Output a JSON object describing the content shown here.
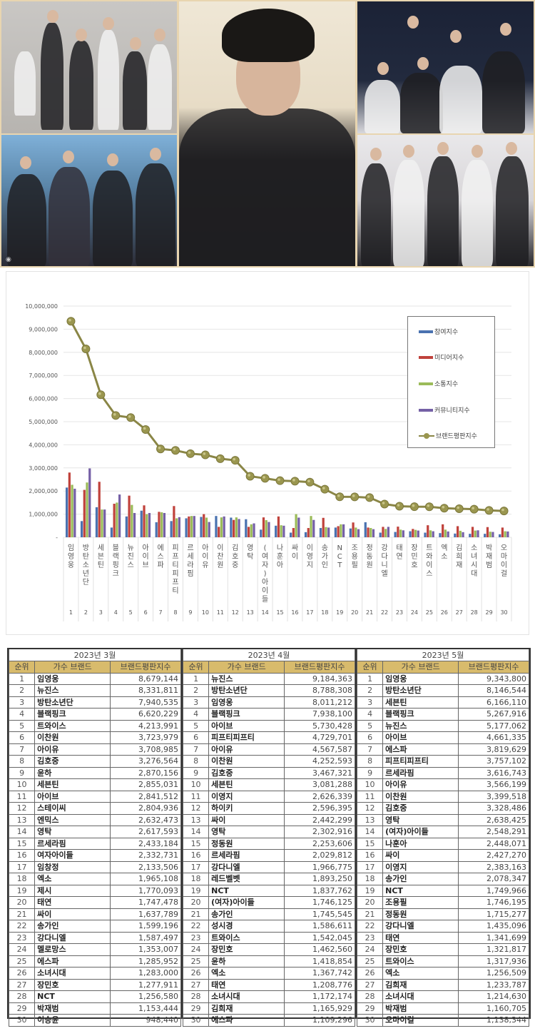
{
  "photos": {
    "items": [
      {
        "name": "세븐틴 group photo",
        "position": "top-left"
      },
      {
        "name": "블랙핑크 group photo",
        "position": "bottom-left"
      },
      {
        "name": "임영웅 portrait",
        "position": "center"
      },
      {
        "name": "방탄소년단 group photo",
        "position": "top-right"
      },
      {
        "name": "뉴진스 group photo",
        "position": "bottom-right"
      }
    ]
  },
  "chart_data": {
    "type": "bar",
    "title": "",
    "xlabel": "",
    "ylabel": "",
    "ylim": [
      0,
      10000000
    ],
    "yticks": [
      "-",
      "1,000,000",
      "2,000,000",
      "3,000,000",
      "4,000,000",
      "5,000,000",
      "6,000,000",
      "7,000,000",
      "8,000,000",
      "9,000,000",
      "10,000,000"
    ],
    "grid": true,
    "legend_position": "upper-right inside",
    "categories": [
      "임영웅",
      "방탄소년단",
      "세븐틴",
      "블랙핑크",
      "뉴진스",
      "아이브",
      "에스파",
      "피프티피프티",
      "르세라핌",
      "아이유",
      "이찬원",
      "김호중",
      "영탁",
      "(여자)아이들",
      "나훈아",
      "싸이",
      "이영지",
      "송가인",
      "NCT",
      "조용필",
      "정동원",
      "강다니엘",
      "태연",
      "장민호",
      "트와이스",
      "엑소",
      "김희재",
      "소녀시대",
      "박재범",
      "오마이걸"
    ],
    "x_numbers": [
      "1",
      "2",
      "3",
      "4",
      "5",
      "6",
      "7",
      "8",
      "9",
      "10",
      "11",
      "12",
      "13",
      "14",
      "15",
      "16",
      "17",
      "18",
      "19",
      "20",
      "21",
      "22",
      "23",
      "24",
      "25",
      "26",
      "27",
      "28",
      "29",
      "30"
    ],
    "series": [
      {
        "name": "참여지수",
        "color": "#4a72b0",
        "kind": "bar",
        "values": [
          2150000,
          700000,
          1300000,
          420000,
          900000,
          1150000,
          650000,
          700000,
          820000,
          880000,
          920000,
          850000,
          780000,
          330000,
          500000,
          200000,
          220000,
          400000,
          420000,
          380000,
          650000,
          200000,
          230000,
          260000,
          200000,
          180000,
          160000,
          150000,
          150000,
          130000
        ]
      },
      {
        "name": "미디어지수",
        "color": "#c0423c",
        "kind": "bar",
        "values": [
          2800000,
          2050000,
          2400000,
          1450000,
          1800000,
          1380000,
          1100000,
          1350000,
          900000,
          1000000,
          450000,
          750000,
          450000,
          860000,
          900000,
          400000,
          400000,
          840000,
          480000,
          640000,
          420000,
          450000,
          460000,
          360000,
          520000,
          560000,
          480000,
          450000,
          440000,
          420000
        ]
      },
      {
        "name": "소통지수",
        "color": "#9bbb59",
        "kind": "bar",
        "values": [
          2270000,
          2370000,
          1200000,
          1500000,
          1400000,
          1000000,
          1080000,
          820000,
          920000,
          850000,
          860000,
          860000,
          560000,
          740000,
          520000,
          1000000,
          920000,
          440000,
          560000,
          420000,
          400000,
          360000,
          330000,
          320000,
          300000,
          330000,
          280000,
          290000,
          240000,
          260000
        ]
      },
      {
        "name": "커뮤니티지수",
        "color": "#7560a6",
        "kind": "bar",
        "values": [
          2100000,
          2980000,
          1200000,
          1850000,
          1050000,
          1050000,
          1050000,
          870000,
          920000,
          660000,
          900000,
          790000,
          600000,
          660000,
          500000,
          850000,
          750000,
          420000,
          560000,
          350000,
          350000,
          450000,
          300000,
          290000,
          260000,
          250000,
          220000,
          300000,
          230000,
          250000
        ]
      },
      {
        "name": "브랜드평판지수",
        "color": "#8a8646",
        "kind": "line",
        "values": [
          9343800,
          8146544,
          6166110,
          5267916,
          5177062,
          4661335,
          3819629,
          3757102,
          3616743,
          3566199,
          3399518,
          3328486,
          2638425,
          2548291,
          2448071,
          2427270,
          2383163,
          2078347,
          1749966,
          1746195,
          1715277,
          1435096,
          1341699,
          1321817,
          1317936,
          1256509,
          1233787,
          1214630,
          1160705,
          1138344
        ]
      }
    ]
  },
  "legend": {
    "items": [
      "참여지수",
      "미디어지수",
      "소통지수",
      "커뮤니티지수",
      "브랜드평판지수"
    ]
  },
  "tables": [
    {
      "month": "2023년 3월",
      "headers": [
        "순위",
        "가수 브랜드",
        "브랜드평판지수"
      ],
      "rows": [
        [
          "1",
          "임영웅",
          "8,679,144"
        ],
        [
          "2",
          "뉴진스",
          "8,331,811"
        ],
        [
          "3",
          "방탄소년단",
          "7,940,535"
        ],
        [
          "4",
          "블랙핑크",
          "6,620,229"
        ],
        [
          "5",
          "트와이스",
          "4,213,991"
        ],
        [
          "6",
          "이찬원",
          "3,723,979"
        ],
        [
          "7",
          "아이유",
          "3,708,985"
        ],
        [
          "8",
          "김호중",
          "3,276,564"
        ],
        [
          "9",
          "윤하",
          "2,870,156"
        ],
        [
          "10",
          "세븐틴",
          "2,855,031"
        ],
        [
          "11",
          "아이브",
          "2,841,512"
        ],
        [
          "12",
          "스테이씨",
          "2,804,936"
        ],
        [
          "13",
          "엔믹스",
          "2,632,473"
        ],
        [
          "14",
          "영탁",
          "2,617,593"
        ],
        [
          "15",
          "르세라핌",
          "2,433,184"
        ],
        [
          "16",
          "여자아이들",
          "2,332,731"
        ],
        [
          "17",
          "임창정",
          "2,133,506"
        ],
        [
          "18",
          "엑소",
          "1,965,108"
        ],
        [
          "19",
          "제시",
          "1,770,093"
        ],
        [
          "20",
          "태연",
          "1,747,478"
        ],
        [
          "21",
          "싸이",
          "1,637,789"
        ],
        [
          "22",
          "송가인",
          "1,599,196"
        ],
        [
          "23",
          "강다니엘",
          "1,587,497"
        ],
        [
          "24",
          "멜로망스",
          "1,353,007"
        ],
        [
          "25",
          "에스파",
          "1,285,952"
        ],
        [
          "26",
          "소녀시대",
          "1,283,000"
        ],
        [
          "27",
          "장민호",
          "1,277,911"
        ],
        [
          "28",
          "NCT",
          "1,256,580"
        ],
        [
          "29",
          "박재범",
          "1,153,444"
        ],
        [
          "30",
          "이승윤",
          "948,440"
        ]
      ]
    },
    {
      "month": "2023년 4월",
      "headers": [
        "순위",
        "가수 브랜드",
        "브랜드평판지수"
      ],
      "rows": [
        [
          "1",
          "뉴진스",
          "9,184,363"
        ],
        [
          "2",
          "방탄소년단",
          "8,788,308"
        ],
        [
          "3",
          "임영웅",
          "8,011,212"
        ],
        [
          "4",
          "블랙핑크",
          "7,938,100"
        ],
        [
          "5",
          "아이브",
          "5,730,428"
        ],
        [
          "6",
          "피프티피프티",
          "4,729,701"
        ],
        [
          "7",
          "아이유",
          "4,567,587"
        ],
        [
          "8",
          "이찬원",
          "4,252,593"
        ],
        [
          "9",
          "김호중",
          "3,467,321"
        ],
        [
          "10",
          "세븐틴",
          "3,081,288"
        ],
        [
          "11",
          "이영지",
          "2,626,339"
        ],
        [
          "12",
          "하이키",
          "2,596,395"
        ],
        [
          "13",
          "싸이",
          "2,442,299"
        ],
        [
          "14",
          "영탁",
          "2,302,916"
        ],
        [
          "15",
          "정동원",
          "2,253,606"
        ],
        [
          "16",
          "르세라핌",
          "2,029,812"
        ],
        [
          "17",
          "강다니엘",
          "1,966,775"
        ],
        [
          "18",
          "레드벨벳",
          "1,893,250"
        ],
        [
          "19",
          "NCT",
          "1,837,762"
        ],
        [
          "20",
          "(여자)아이들",
          "1,746,125"
        ],
        [
          "21",
          "송가인",
          "1,745,545"
        ],
        [
          "22",
          "성시경",
          "1,586,611"
        ],
        [
          "23",
          "트와이스",
          "1,542,045"
        ],
        [
          "24",
          "장민호",
          "1,462,560"
        ],
        [
          "25",
          "윤하",
          "1,418,854"
        ],
        [
          "26",
          "엑소",
          "1,367,742"
        ],
        [
          "27",
          "태연",
          "1,208,776"
        ],
        [
          "28",
          "소녀시대",
          "1,172,174"
        ],
        [
          "29",
          "김희재",
          "1,165,929"
        ],
        [
          "30",
          "에스파",
          "1,109,296"
        ]
      ]
    },
    {
      "month": "2023년 5월",
      "headers": [
        "순위",
        "가수 브랜드",
        "브랜드평판지수"
      ],
      "rows": [
        [
          "1",
          "임영웅",
          "9,343,800"
        ],
        [
          "2",
          "방탄소년단",
          "8,146,544"
        ],
        [
          "3",
          "세븐틴",
          "6,166,110"
        ],
        [
          "4",
          "블랙핑크",
          "5,267,916"
        ],
        [
          "5",
          "뉴진스",
          "5,177,062"
        ],
        [
          "6",
          "아이브",
          "4,661,335"
        ],
        [
          "7",
          "에스파",
          "3,819,629"
        ],
        [
          "8",
          "피프티피프티",
          "3,757,102"
        ],
        [
          "9",
          "르세라핌",
          "3,616,743"
        ],
        [
          "10",
          "아이유",
          "3,566,199"
        ],
        [
          "11",
          "이찬원",
          "3,399,518"
        ],
        [
          "12",
          "김호중",
          "3,328,486"
        ],
        [
          "13",
          "영탁",
          "2,638,425"
        ],
        [
          "14",
          "(여자)아이들",
          "2,548,291"
        ],
        [
          "15",
          "나훈아",
          "2,448,071"
        ],
        [
          "16",
          "싸이",
          "2,427,270"
        ],
        [
          "17",
          "이영지",
          "2,383,163"
        ],
        [
          "18",
          "송가인",
          "2,078,347"
        ],
        [
          "19",
          "NCT",
          "1,749,966"
        ],
        [
          "20",
          "조용필",
          "1,746,195"
        ],
        [
          "21",
          "정동원",
          "1,715,277"
        ],
        [
          "22",
          "강다니엘",
          "1,435,096"
        ],
        [
          "23",
          "태연",
          "1,341,699"
        ],
        [
          "24",
          "장민호",
          "1,321,817"
        ],
        [
          "25",
          "트와이스",
          "1,317,936"
        ],
        [
          "26",
          "엑소",
          "1,256,509"
        ],
        [
          "27",
          "김희재",
          "1,233,787"
        ],
        [
          "28",
          "소녀시대",
          "1,214,630"
        ],
        [
          "29",
          "박재범",
          "1,160,705"
        ],
        [
          "30",
          "오마이걸",
          "1,138,344"
        ]
      ]
    }
  ]
}
